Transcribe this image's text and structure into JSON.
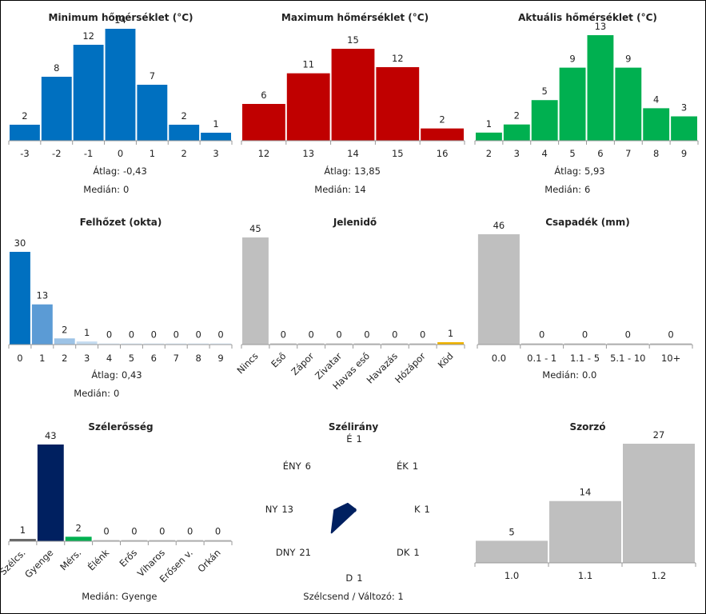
{
  "colors": {
    "blue": "#0070c0",
    "red": "#c00000",
    "green": "#00b050",
    "grey": "#bfbfbf",
    "navy": "#002060"
  },
  "chart_data": [
    {
      "type": "bar",
      "title": "Minimum hőmérséklet (°C)",
      "categories": [
        "-3",
        "-2",
        "-1",
        "0",
        "1",
        "2",
        "3"
      ],
      "values": [
        2,
        8,
        12,
        14,
        7,
        2,
        1
      ],
      "color": "#0070c0",
      "stats": [
        {
          "label": "Átlag:",
          "value": "-0,43"
        },
        {
          "label": "Medián:",
          "value": "0"
        }
      ]
    },
    {
      "type": "bar",
      "title": "Maximum hőmérséklet (°C)",
      "categories": [
        "12",
        "13",
        "14",
        "15",
        "16"
      ],
      "values": [
        6,
        11,
        15,
        12,
        2
      ],
      "color": "#c00000",
      "stats": [
        {
          "label": "Átlag:",
          "value": "13,85"
        },
        {
          "label": "Medián:",
          "value": "14"
        }
      ]
    },
    {
      "type": "bar",
      "title": "Aktuális hőmérséklet (°C)",
      "categories": [
        "2",
        "3",
        "4",
        "5",
        "6",
        "7",
        "8",
        "9"
      ],
      "values": [
        1,
        2,
        5,
        9,
        13,
        9,
        4,
        3
      ],
      "color": "#00b050",
      "stats": [
        {
          "label": "Átlag:",
          "value": "5,93"
        },
        {
          "label": "Medián:",
          "value": "6"
        }
      ]
    },
    {
      "type": "bar",
      "title": "Felhőzet (okta)",
      "categories": [
        "0",
        "1",
        "2",
        "3",
        "4",
        "5",
        "6",
        "7",
        "8",
        "9"
      ],
      "values": [
        30,
        13,
        2,
        1,
        0,
        0,
        0,
        0,
        0,
        0
      ],
      "colors": [
        "#0070c0",
        "#5b9bd5",
        "#9dc3e6",
        "#c5dcf0",
        "#ddebf7",
        "#ddebf7",
        "#ddebf7",
        "#ddebf7",
        "#ddebf7",
        "#ddebf7"
      ],
      "stats": [
        {
          "label": "Átlag:",
          "value": "0,43"
        },
        {
          "label": "Medián:",
          "value": "0"
        }
      ]
    },
    {
      "type": "bar",
      "title": "Jelenidő",
      "categories": [
        "Nincs",
        "Eső",
        "Zápor",
        "Zivatar",
        "Havas eső",
        "Havazás",
        "Hózápor",
        "Köd"
      ],
      "values": [
        45,
        0,
        0,
        0,
        0,
        0,
        0,
        1
      ],
      "colors": [
        "#bfbfbf",
        "#bfbfbf",
        "#bfbfbf",
        "#bfbfbf",
        "#bfbfbf",
        "#bfbfbf",
        "#bfbfbf",
        "#f0b400"
      ],
      "stats": []
    },
    {
      "type": "bar",
      "title": "Csapadék (mm)",
      "categories": [
        "0.0",
        "0.1 - 1",
        "1.1 - 5",
        "5.1 - 10",
        "10+"
      ],
      "values": [
        46,
        0,
        0,
        0,
        0
      ],
      "color": "#bfbfbf",
      "stats": [
        {
          "label": "Medián:",
          "value": "0.0"
        }
      ]
    },
    {
      "type": "bar",
      "title": "Szélerősség",
      "categories": [
        "Szélcs.",
        "Gyenge",
        "Mérs.",
        "Élénk",
        "Erős",
        "Viharos",
        "Erősen v.",
        "Orkán"
      ],
      "values": [
        1,
        43,
        2,
        0,
        0,
        0,
        0,
        0
      ],
      "colors": [
        "#595959",
        "#002060",
        "#00b050",
        "#bfbfbf",
        "#bfbfbf",
        "#bfbfbf",
        "#bfbfbf",
        "#bfbfbf"
      ],
      "stats": [
        {
          "label": "Medián:",
          "value": "Gyenge"
        }
      ]
    },
    {
      "type": "radar",
      "title": "Szélirány",
      "directions": [
        "É",
        "ÉK",
        "K",
        "DK",
        "D",
        "DNY",
        "NY",
        "ÉNY"
      ],
      "values": [
        1,
        1,
        1,
        1,
        1,
        21,
        13,
        6
      ],
      "color": "#002060",
      "footer": "Szélcsend / Változó: 1"
    },
    {
      "type": "bar",
      "title": "Szorzó",
      "categories": [
        "1.0",
        "1.1",
        "1.2"
      ],
      "values": [
        5,
        14,
        27
      ],
      "color": "#bfbfbf",
      "stats": []
    }
  ]
}
